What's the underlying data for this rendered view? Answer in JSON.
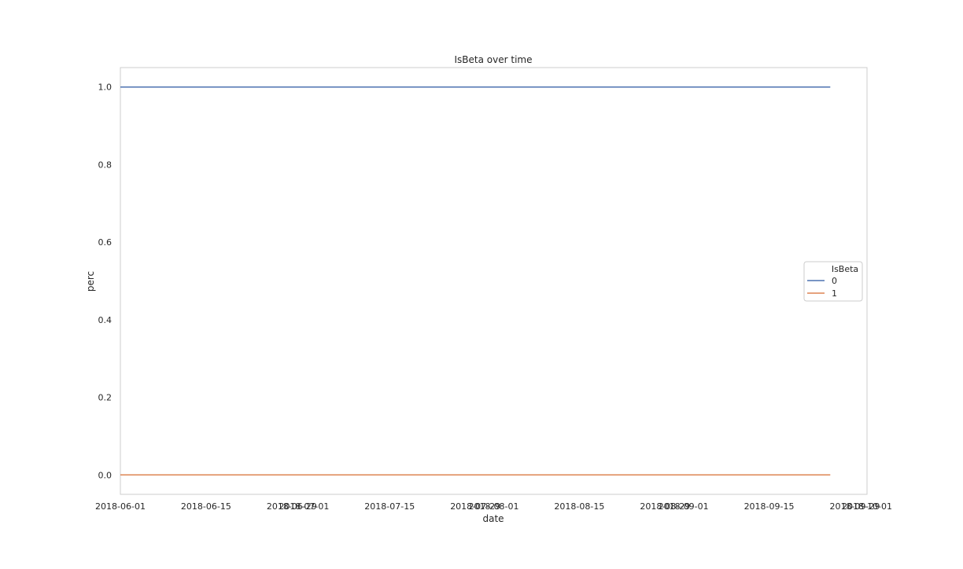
{
  "chart_data": {
    "type": "line",
    "title": "IsBeta over time",
    "xlabel": "date",
    "ylabel": "perc",
    "x_ticks": [
      "2018-06-01",
      "2018-06-15",
      "2018-06-29",
      "2018-07-01",
      "2018-07-15",
      "2018-07-29",
      "2018-08-01",
      "2018-08-15",
      "2018-08-29",
      "2018-09-01",
      "2018-09-15",
      "2018-09-29",
      "2018-10-01"
    ],
    "y_ticks": [
      0.0,
      0.2,
      0.4,
      0.6,
      0.8,
      1.0
    ],
    "ylim": [
      -0.05,
      1.05
    ],
    "xlim": [
      "2018-06-01",
      "2018-10-01"
    ],
    "grid": false,
    "legend": {
      "title": "IsBeta",
      "placement": "center-right"
    },
    "series": [
      {
        "name": "0",
        "color": "#4c72b0",
        "x": [
          "2018-06-01",
          "2018-09-25"
        ],
        "values": [
          1.0,
          1.0
        ]
      },
      {
        "name": "1",
        "color": "#dd8452",
        "x": [
          "2018-06-01",
          "2018-09-25"
        ],
        "values": [
          0.0,
          0.0
        ]
      }
    ]
  }
}
